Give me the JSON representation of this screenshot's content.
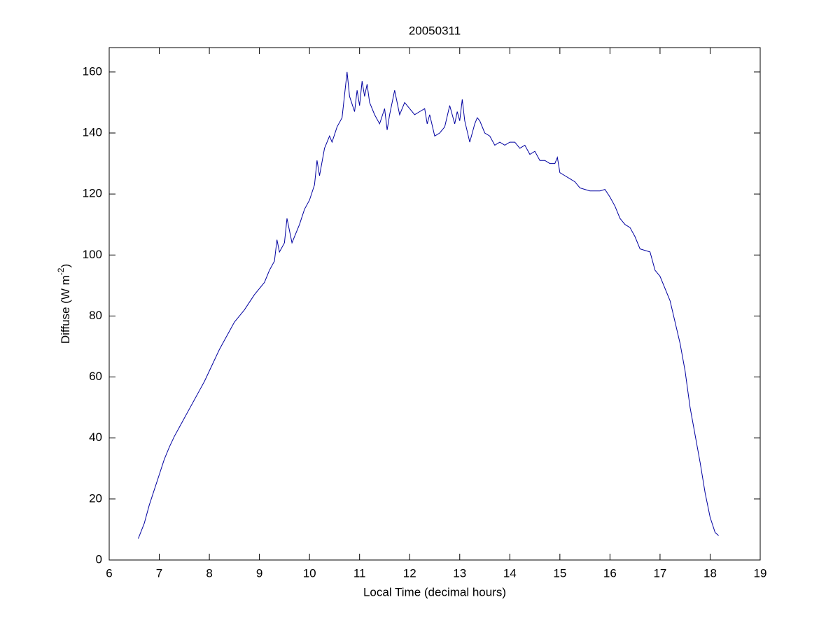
{
  "chart_data": {
    "type": "line",
    "title": "20050311",
    "xlabel": "Local Time (decimal hours)",
    "ylabel_parts": [
      "Diffuse (W m",
      "-2",
      ")"
    ],
    "xlim": [
      6,
      19
    ],
    "xticks": [
      6,
      7,
      8,
      9,
      10,
      11,
      12,
      13,
      14,
      15,
      16,
      17,
      18,
      19
    ],
    "ylim": [
      0,
      168
    ],
    "yticks": [
      0,
      20,
      40,
      60,
      80,
      100,
      120,
      140,
      160
    ],
    "grid": false,
    "x": [
      6.58,
      6.7,
      6.8,
      6.9,
      7.0,
      7.1,
      7.2,
      7.3,
      7.4,
      7.5,
      7.6,
      7.7,
      7.8,
      7.9,
      8.0,
      8.1,
      8.2,
      8.3,
      8.4,
      8.5,
      8.6,
      8.7,
      8.8,
      8.9,
      9.0,
      9.1,
      9.2,
      9.3,
      9.35,
      9.4,
      9.5,
      9.55,
      9.65,
      9.8,
      9.9,
      10.0,
      10.1,
      10.15,
      10.2,
      10.3,
      10.4,
      10.45,
      10.55,
      10.65,
      10.75,
      10.8,
      10.9,
      10.95,
      11.0,
      11.05,
      11.1,
      11.15,
      11.2,
      11.3,
      11.4,
      11.5,
      11.55,
      11.6,
      11.7,
      11.8,
      11.9,
      12.0,
      12.1,
      12.2,
      12.3,
      12.35,
      12.4,
      12.5,
      12.6,
      12.7,
      12.8,
      12.9,
      12.95,
      13.0,
      13.05,
      13.1,
      13.2,
      13.3,
      13.35,
      13.4,
      13.5,
      13.6,
      13.7,
      13.8,
      13.9,
      14.0,
      14.1,
      14.2,
      14.3,
      14.4,
      14.5,
      14.6,
      14.7,
      14.8,
      14.9,
      14.95,
      15.0,
      15.1,
      15.2,
      15.3,
      15.4,
      15.5,
      15.6,
      15.7,
      15.8,
      15.9,
      16.0,
      16.1,
      16.2,
      16.3,
      16.4,
      16.5,
      16.6,
      16.7,
      16.8,
      16.9,
      17.0,
      17.1,
      17.2,
      17.3,
      17.4,
      17.5,
      17.6,
      17.7,
      17.8,
      17.9,
      18.0,
      18.1,
      18.17
    ],
    "series": [
      {
        "color": "#0000a0",
        "values": [
          7,
          12,
          18,
          23,
          28,
          33,
          37,
          40.5,
          43.5,
          46.5,
          49.5,
          52.5,
          55.5,
          58.5,
          62,
          65.5,
          69,
          72,
          75,
          78,
          80,
          82,
          84.5,
          87,
          89,
          91,
          95,
          98,
          105,
          101,
          104,
          112,
          104,
          110,
          115,
          118,
          123,
          131,
          126,
          135,
          139,
          137,
          142,
          145,
          160,
          152,
          147,
          154,
          149,
          157,
          152,
          156,
          150,
          146,
          143,
          148,
          141,
          146,
          154,
          146,
          150,
          148,
          146,
          147,
          148,
          143,
          146,
          139,
          140,
          142,
          149,
          143,
          147,
          144,
          151,
          144,
          137,
          143,
          145,
          144,
          140,
          139,
          136,
          137,
          136,
          137,
          137,
          135,
          136,
          133,
          134,
          131,
          131,
          130,
          130,
          132,
          127,
          126,
          125,
          124,
          122,
          121.5,
          121,
          121,
          121,
          121.5,
          119,
          116,
          112,
          110,
          109,
          106,
          102,
          101.5,
          101,
          95,
          93,
          89,
          85,
          78,
          71,
          62,
          50,
          41,
          32,
          22,
          14,
          9,
          8
        ]
      }
    ]
  }
}
